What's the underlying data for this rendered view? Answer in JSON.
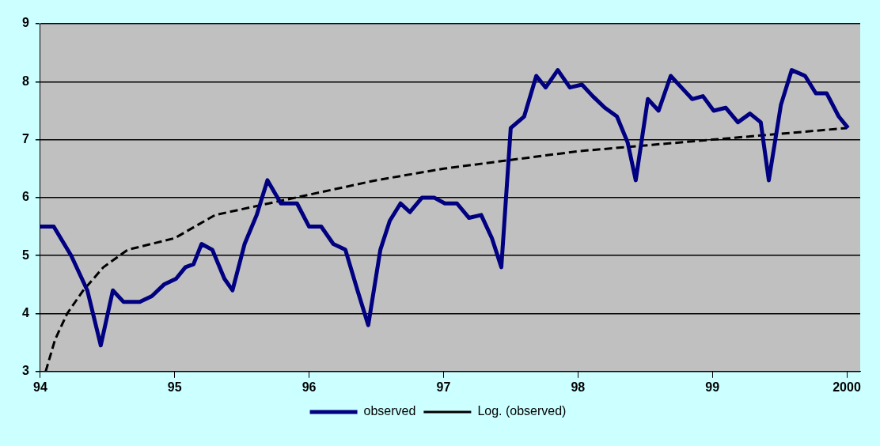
{
  "chart_data": {
    "type": "line",
    "xlim": [
      1994,
      2000.1
    ],
    "ylim": [
      3,
      9
    ],
    "xticks": [
      {
        "value": 1994,
        "label": "94"
      },
      {
        "value": 1995,
        "label": "95"
      },
      {
        "value": 1996,
        "label": "96"
      },
      {
        "value": 1997,
        "label": "97"
      },
      {
        "value": 1998,
        "label": "98"
      },
      {
        "value": 1999,
        "label": "99"
      },
      {
        "value": 2000,
        "label": "2000"
      }
    ],
    "yticks": [
      3,
      4,
      5,
      6,
      7,
      8,
      9
    ],
    "grid": "y",
    "legend": "bottom",
    "marker": "none",
    "series": [
      {
        "name": "observed",
        "color": "#000080",
        "line_style": "solid",
        "x": [
          1994.0,
          1994.1,
          1994.23,
          1994.35,
          1994.45,
          1994.54,
          1994.62,
          1994.74,
          1994.83,
          1994.92,
          1995.01,
          1995.08,
          1995.14,
          1995.2,
          1995.28,
          1995.37,
          1995.43,
          1995.52,
          1995.61,
          1995.69,
          1995.79,
          1995.91,
          1996.0,
          1996.09,
          1996.18,
          1996.27,
          1996.36,
          1996.44,
          1996.53,
          1996.6,
          1996.68,
          1996.75,
          1996.84,
          1996.93,
          1997.01,
          1997.1,
          1997.19,
          1997.28,
          1997.36,
          1997.43,
          1997.5,
          1997.6,
          1997.69,
          1997.76,
          1997.85,
          1997.94,
          1998.03,
          1998.11,
          1998.2,
          1998.29,
          1998.37,
          1998.43,
          1998.52,
          1998.6,
          1998.69,
          1998.77,
          1998.85,
          1998.93,
          1999.01,
          1999.1,
          1999.19,
          1999.28,
          1999.36,
          1999.42,
          1999.51,
          1999.59,
          1999.69,
          1999.77,
          1999.85,
          1999.94,
          2000.01
        ],
        "values": [
          5.5,
          5.5,
          5.0,
          4.4,
          3.45,
          4.4,
          4.2,
          4.2,
          4.3,
          4.5,
          4.6,
          4.8,
          4.85,
          5.2,
          5.1,
          4.6,
          4.4,
          5.2,
          5.7,
          6.3,
          5.9,
          5.9,
          5.5,
          5.5,
          5.2,
          5.1,
          4.4,
          3.8,
          5.1,
          5.6,
          5.9,
          5.75,
          6.0,
          6.0,
          5.9,
          5.9,
          5.65,
          5.7,
          5.3,
          4.8,
          7.2,
          7.4,
          8.1,
          7.9,
          8.2,
          7.9,
          7.95,
          7.75,
          7.55,
          7.4,
          6.95,
          6.3,
          7.7,
          7.5,
          8.1,
          7.9,
          7.7,
          7.75,
          7.5,
          7.55,
          7.3,
          7.45,
          7.3,
          6.3,
          7.6,
          8.2,
          8.1,
          7.8,
          7.8,
          7.4,
          7.2
        ]
      },
      {
        "name": "Log. (observed)",
        "color": "#000000",
        "line_style": "dashed",
        "x": [
          1994.04,
          1994.11,
          1994.2,
          1994.32,
          1994.47,
          1994.65,
          1995.0,
          1995.3,
          1995.7,
          1996.0,
          1996.5,
          1997.0,
          1997.5,
          1998.0,
          1999.0,
          2000.0
        ],
        "values": [
          3.0,
          3.55,
          4.0,
          4.4,
          4.8,
          5.1,
          5.3,
          5.7,
          5.9,
          6.05,
          6.3,
          6.5,
          6.65,
          6.8,
          7.0,
          7.2
        ]
      }
    ]
  }
}
